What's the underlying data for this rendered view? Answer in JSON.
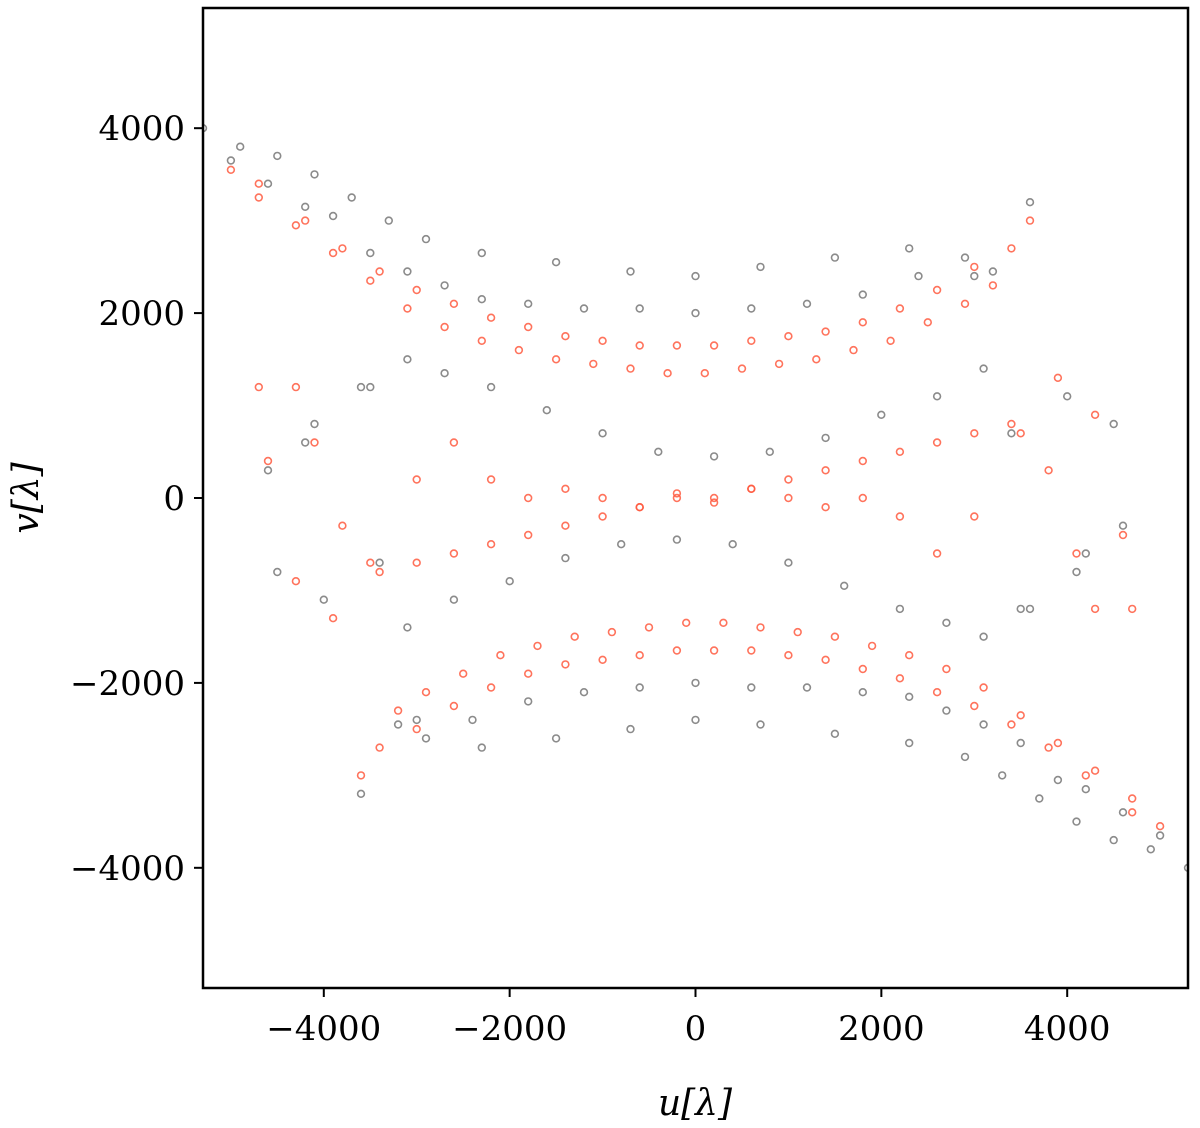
{
  "chart_data": {
    "type": "scatter",
    "title": "",
    "xlabel": "u[λ]",
    "ylabel": "v[λ]",
    "xlim": [
      -5300,
      5300
    ],
    "ylim": [
      -5300,
      5300
    ],
    "xticks": [
      -4000,
      -2000,
      0,
      2000,
      4000
    ],
    "yticks": [
      -4000,
      -2000,
      0,
      2000,
      4000
    ],
    "xtick_labels": [
      "−4000",
      "−2000",
      "0",
      "2000",
      "4000"
    ],
    "ytick_labels": [
      "−4000",
      "−2000",
      "0",
      "2000",
      "4000"
    ],
    "grid": false,
    "legend": "none",
    "marker": "open-circle",
    "series": [
      {
        "color": "#6e6e6e",
        "description_shape": "uv-track arcs",
        "x": [
          -5300,
          -5000,
          -4600,
          -4200,
          -3900,
          -3500,
          -3100,
          -2700,
          -2300,
          -1800,
          -1200,
          -600,
          0,
          600,
          1200,
          1800,
          2400,
          2900,
          3200,
          3100,
          2600,
          2000,
          1400,
          800,
          200,
          -400,
          -1000,
          -1600,
          -2200,
          -2700,
          -3100,
          -3500,
          -3000,
          -2300,
          -1500,
          -700,
          0,
          700,
          1500,
          2300,
          2900,
          3300,
          3700,
          4100,
          4500,
          4900,
          3600,
          4100,
          4600,
          3400,
          4000,
          -4500,
          -4200,
          -3600
        ],
        "y": [
          4000,
          3650,
          3400,
          3150,
          3050,
          2650,
          2450,
          2300,
          2150,
          2100,
          2050,
          2050,
          2000,
          2050,
          2100,
          2200,
          2400,
          2600,
          2450,
          1400,
          1100,
          900,
          650,
          500,
          450,
          500,
          700,
          950,
          1200,
          1350,
          1500,
          1200,
          -2400,
          -2700,
          -2600,
          -2500,
          -2400,
          -2450,
          -2550,
          -2650,
          -2800,
          -3000,
          -3250,
          -3500,
          -3700,
          -3800,
          -1200,
          -800,
          -300,
          700,
          1100,
          -800,
          600,
          -3200
        ]
      },
      {
        "color": "#ff5a40",
        "description_shape": "uv-track arcs",
        "x": [
          -5000,
          -4700,
          -4300,
          -3900,
          -3500,
          -3100,
          -2700,
          -2300,
          -1900,
          -1500,
          -1100,
          -700,
          -300,
          100,
          500,
          900,
          1300,
          1700,
          2100,
          2500,
          2900,
          3200,
          -4700,
          -4600,
          -4300,
          -3900,
          -3500,
          -3000,
          -2600,
          -2200,
          -1800,
          -1400,
          -1000,
          -600,
          -200,
          200,
          600,
          1000,
          1400,
          1800,
          2200,
          2600,
          3000,
          3400,
          3800,
          4100,
          4300,
          4700,
          4200,
          3800,
          3400,
          3000,
          2600,
          2200,
          1800,
          1400,
          1000,
          600,
          200,
          -200,
          -600,
          -1000,
          -1400,
          -1800,
          -2200,
          -2600,
          -3000,
          -3400,
          -3600
        ],
        "y": [
          3550,
          3250,
          2950,
          2650,
          2350,
          2050,
          1850,
          1700,
          1600,
          1500,
          1450,
          1400,
          1350,
          1350,
          1400,
          1450,
          1500,
          1600,
          1700,
          1900,
          2100,
          2300,
          1200,
          400,
          -900,
          -1300,
          -700,
          200,
          600,
          200,
          0,
          100,
          0,
          -100,
          50,
          0,
          100,
          200,
          300,
          400,
          500,
          600,
          700,
          800,
          300,
          -600,
          -1200,
          -3400,
          -3000,
          -2700,
          -2450,
          -2250,
          -2100,
          -1950,
          -1850,
          -1750,
          -1700,
          -1650,
          -1650,
          -1650,
          -1700,
          -1750,
          -1800,
          -1900,
          -2050,
          -2250,
          -2500,
          -2700,
          -3000
        ]
      }
    ]
  }
}
